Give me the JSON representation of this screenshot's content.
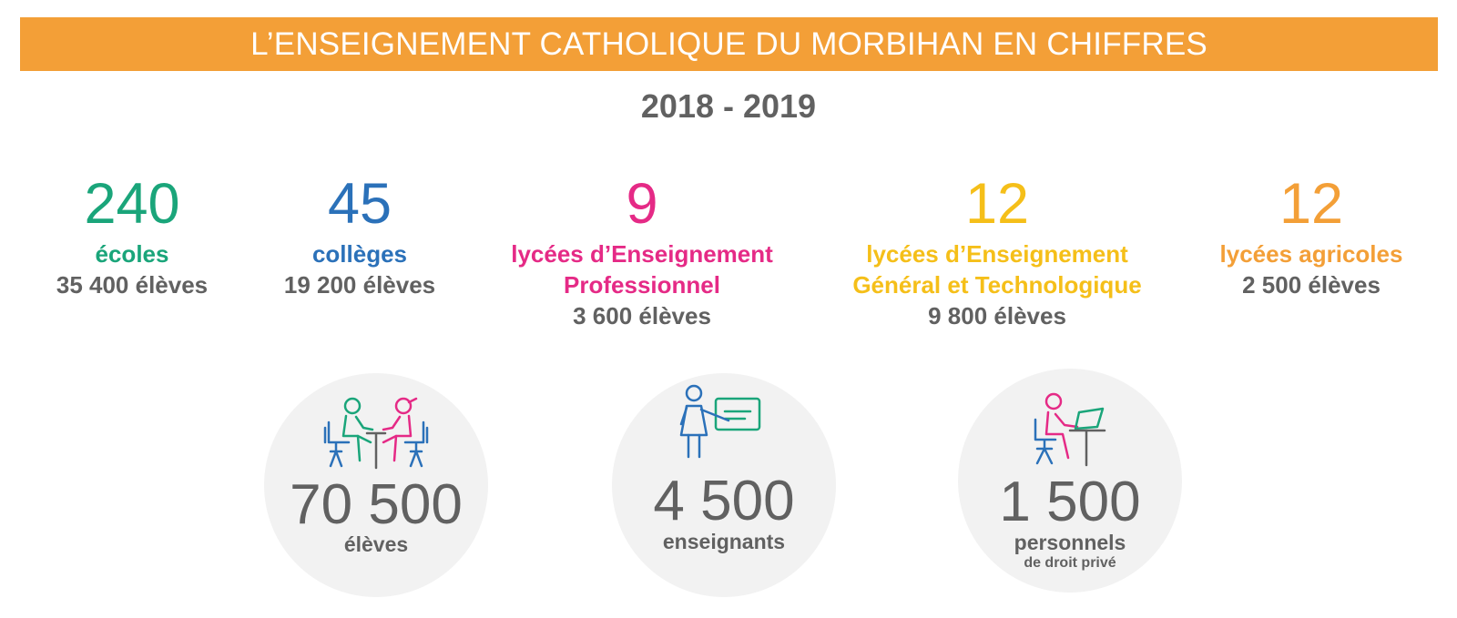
{
  "header": {
    "title": "L’ENSEIGNEMENT CATHOLIQUE DU MORBIHAN EN CHIFFRES",
    "year": "2018 - 2019"
  },
  "colors": {
    "banner": "#f39f37",
    "green": "#1aa57a",
    "blue": "#2b71b9",
    "pink": "#e52a86",
    "yellow": "#f5bf19",
    "orange": "#f39f37",
    "grey": "#616161"
  },
  "stats": [
    {
      "number": "240",
      "label": "écoles",
      "sub": "35 400 élèves"
    },
    {
      "number": "45",
      "label": "collèges",
      "sub": "19 200 élèves"
    },
    {
      "number": "9",
      "label_line1": "lycées d’Enseignement",
      "label_line2": "Professionnel",
      "sub": "3 600 élèves"
    },
    {
      "number": "12",
      "label_line1": "lycées d’Enseignement",
      "label_line2": "Général et Technologique",
      "sub": "9 800 élèves"
    },
    {
      "number": "12",
      "label": "lycées agricoles",
      "sub": "2 500 élèves"
    }
  ],
  "totals": [
    {
      "number": "70 500",
      "caption": "élèves",
      "icon": "students-icon"
    },
    {
      "number": "4 500",
      "caption": "enseignants",
      "icon": "teacher-icon"
    },
    {
      "number": "1 500",
      "caption": "personnels",
      "caption2": "de droit privé",
      "icon": "staff-computer-icon"
    }
  ]
}
